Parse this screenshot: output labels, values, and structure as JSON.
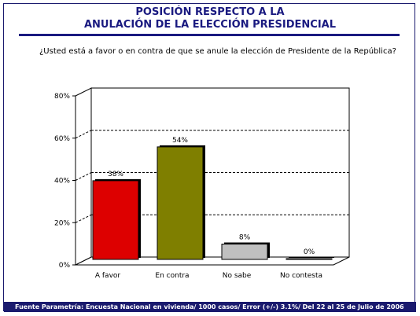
{
  "title_line1": "POSICIÓN RESPECTO A LA",
  "title_line2": "ANULACIÓN DE LA ELECCIÓN PRESIDENCIAL",
  "question": "¿Usted está a favor o en contra de que se anule la elección de Presidente de la República?",
  "footer": "Fuente Parametría: Encuesta Nacional en vivienda/ 1000 casos/ Error (+/-) 3.1%/ Del 22 al 25 de Julio de 2006",
  "chart_data": {
    "type": "bar",
    "categories": [
      "A favor",
      "En contra",
      "No sabe",
      "No contesta"
    ],
    "values": [
      38,
      54,
      8,
      0
    ],
    "value_labels": [
      "38%",
      "54%",
      "8%",
      "0%"
    ],
    "bar_colors": [
      "#dd0000",
      "#7f7f00",
      "#c0c0c0",
      "#ffffff"
    ],
    "ylim": [
      0,
      80
    ],
    "yticks": [
      0,
      20,
      40,
      60,
      80
    ],
    "ytick_labels": [
      "0%",
      "20%",
      "40%",
      "60%",
      "80%"
    ],
    "gridlines": [
      20,
      40,
      60
    ],
    "grid": "dashed",
    "xlabel": "",
    "ylabel": ""
  }
}
